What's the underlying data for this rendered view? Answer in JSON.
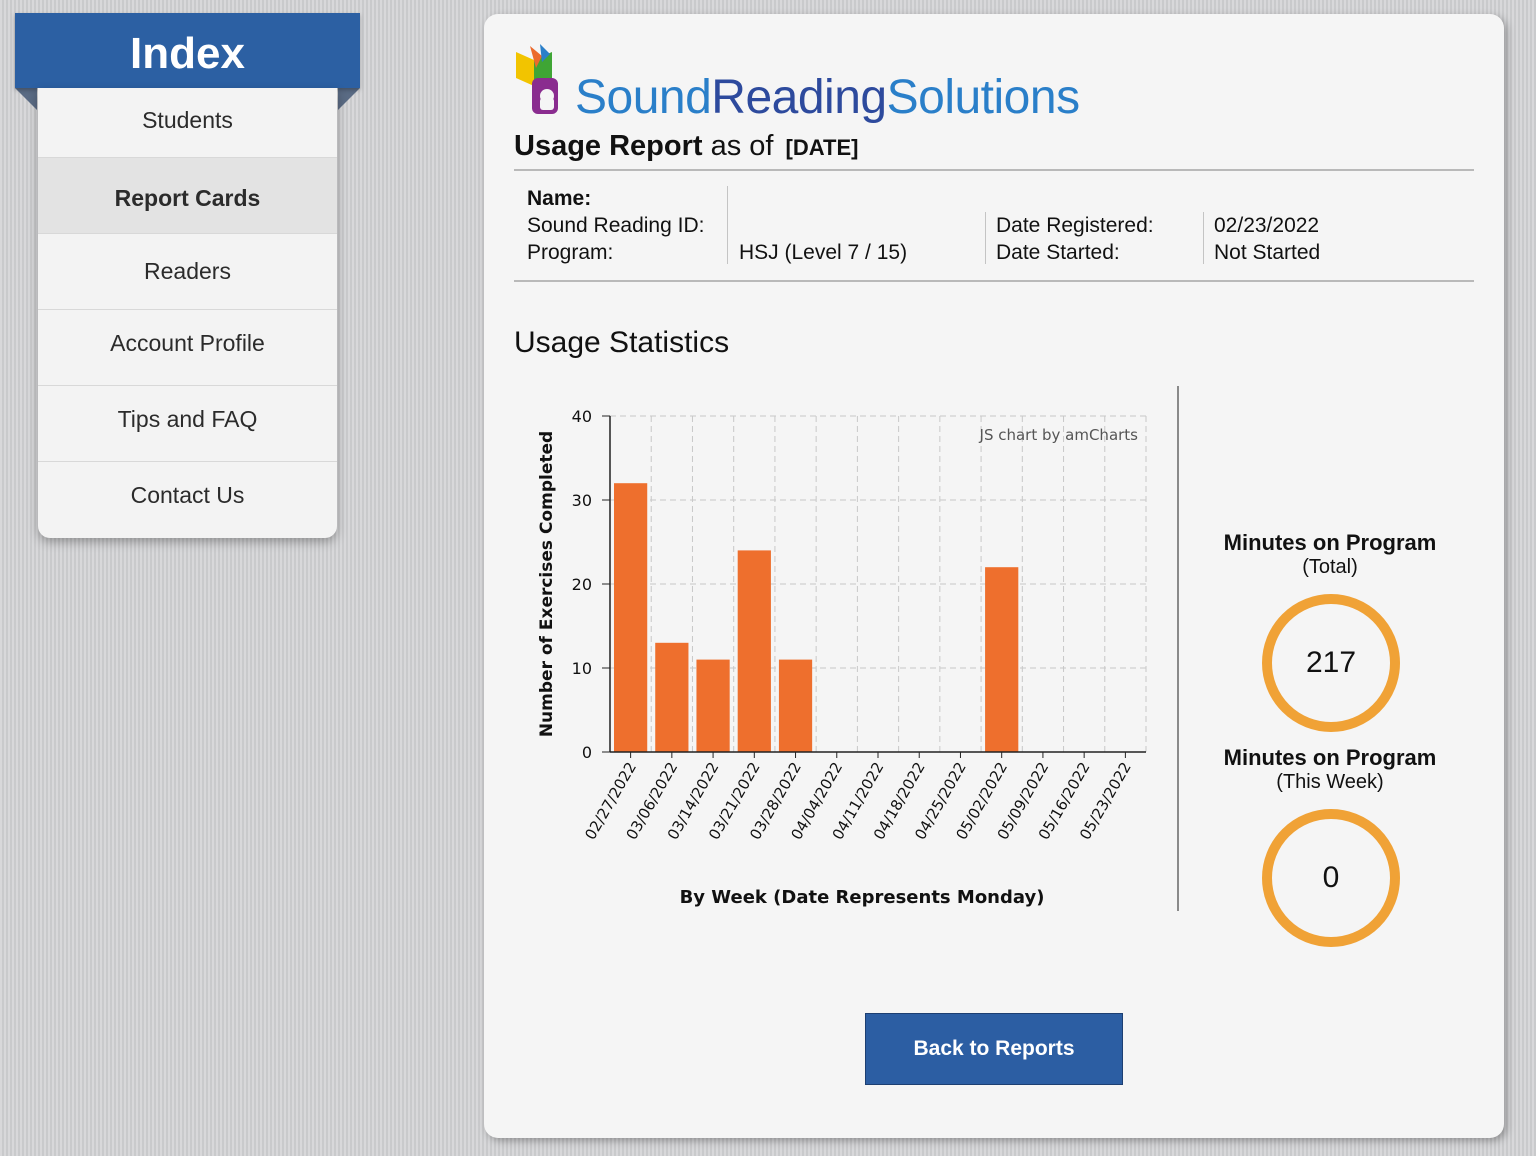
{
  "sidebar": {
    "title": "Index",
    "items": [
      {
        "label": "Students",
        "active": false
      },
      {
        "label": "Report Cards",
        "active": true
      },
      {
        "label": "Readers",
        "active": false
      },
      {
        "label": "Account Profile",
        "active": false
      },
      {
        "label": "Tips and FAQ",
        "active": false
      },
      {
        "label": "Contact Us",
        "active": false
      }
    ]
  },
  "header": {
    "logo_words": [
      "Sound",
      "Reading",
      "Solutions"
    ],
    "title_strong": "Usage Report",
    "title_rest": "as of",
    "title_date": "[DATE]"
  },
  "info": {
    "name_label": "Name:",
    "id_label": "Sound Reading ID:",
    "program_label": "Program:",
    "program_value": "HSJ (Level 7 / 15)",
    "registered_label": "Date Registered:",
    "registered_value": "02/23/2022",
    "started_label": "Date Started:",
    "started_value": "Not Started"
  },
  "usage": {
    "title": "Usage Statistics",
    "total_label": "Minutes on Program",
    "total_sub": "(Total)",
    "total_value": "217",
    "week_label": "Minutes on Program",
    "week_sub": "(This Week)",
    "week_value": "0"
  },
  "chart_data": {
    "type": "bar",
    "categories": [
      "02/27/2022",
      "03/06/2022",
      "03/14/2022",
      "03/21/2022",
      "03/28/2022",
      "04/04/2022",
      "04/11/2022",
      "04/18/2022",
      "04/25/2022",
      "05/02/2022",
      "05/09/2022",
      "05/16/2022",
      "05/23/2022"
    ],
    "values": [
      32,
      13,
      11,
      24,
      11,
      0,
      0,
      0,
      0,
      22,
      0,
      0,
      0
    ],
    "xlabel": "By Week (Date Represents Monday)",
    "ylabel": "Number of Exercises Completed",
    "ylim": [
      0,
      40
    ],
    "yticks": [
      0,
      10,
      20,
      30,
      40
    ],
    "credit": "JS chart by amCharts",
    "grid": true,
    "color": "#ee6f2d"
  },
  "buttons": {
    "back": "Back to Reports"
  },
  "colors": {
    "brand_blue": "#2c60a3",
    "bar_orange": "#ee6f2d",
    "ring_orange": "#f0a236"
  }
}
